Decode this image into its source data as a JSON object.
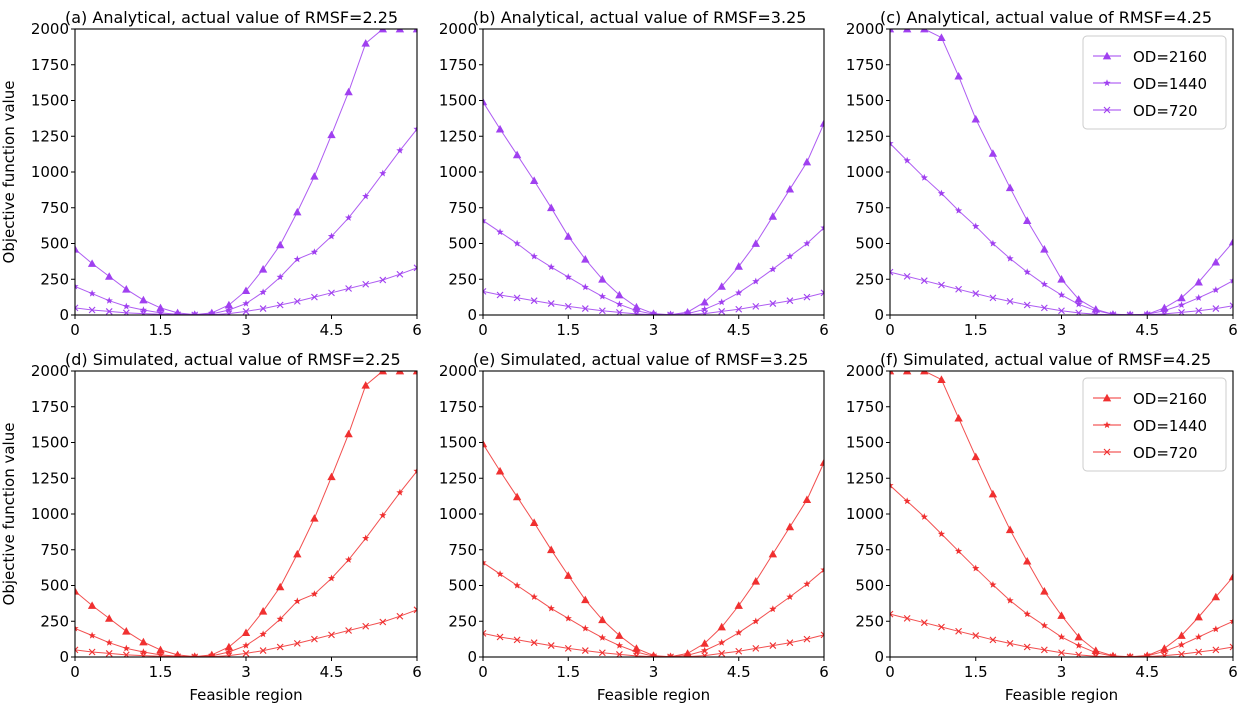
{
  "figure": {
    "shared_ylabel": "Objective function value",
    "shared_xlabel": "Feasible region",
    "series_names": [
      "OD=2160",
      "OD=1440",
      "OD=720"
    ],
    "markers": [
      "triangle",
      "star",
      "x"
    ],
    "colors": {
      "analytical": "#a040f0",
      "simulated": "#f03030"
    }
  },
  "chart_data": [
    {
      "type": "line",
      "group": "analytical",
      "title": "(a) Analytical, actual value of RMSF=2.25",
      "xlabel": "",
      "ylabel": "Objective function value",
      "xlim": [
        0,
        6
      ],
      "ylim": [
        0,
        2000
      ],
      "xticks": [
        "0",
        "1.5",
        "3",
        "4.5",
        "6"
      ],
      "yticks": [
        "0",
        "250",
        "500",
        "750",
        "1000",
        "1250",
        "1500",
        "1750",
        "2000"
      ],
      "legend": false,
      "x": [
        0,
        0.3,
        0.6,
        0.9,
        1.2,
        1.5,
        1.8,
        2.1,
        2.4,
        2.7,
        3.0,
        3.3,
        3.6,
        3.9,
        4.2,
        4.5,
        4.8,
        5.1,
        5.4,
        5.7,
        6.0
      ],
      "series": [
        {
          "name": "OD=2160",
          "marker": "triangle",
          "values": [
            460,
            360,
            270,
            180,
            105,
            50,
            15,
            3,
            15,
            70,
            170,
            320,
            490,
            720,
            970,
            1260,
            1560,
            1900,
            2000,
            2000,
            2000
          ]
        },
        {
          "name": "OD=1440",
          "marker": "star",
          "values": [
            200,
            150,
            100,
            60,
            35,
            15,
            5,
            2,
            8,
            35,
            80,
            160,
            265,
            390,
            440,
            550,
            680,
            830,
            990,
            1150,
            1300
          ]
        },
        {
          "name": "OD=720",
          "marker": "x",
          "values": [
            50,
            35,
            25,
            15,
            10,
            5,
            2,
            1,
            2,
            10,
            25,
            45,
            70,
            95,
            125,
            155,
            185,
            215,
            245,
            285,
            330
          ]
        }
      ]
    },
    {
      "type": "line",
      "group": "analytical",
      "title": "(b) Analytical, actual value of RMSF=3.25",
      "xlabel": "",
      "ylabel": "",
      "xlim": [
        0,
        6
      ],
      "ylim": [
        0,
        2000
      ],
      "xticks": [
        "0",
        "1.5",
        "3",
        "4.5",
        "6"
      ],
      "yticks": [
        "0",
        "250",
        "500",
        "750",
        "1000",
        "1250",
        "1500",
        "1750",
        "2000"
      ],
      "legend": false,
      "x": [
        0,
        0.3,
        0.6,
        0.9,
        1.2,
        1.5,
        1.8,
        2.1,
        2.4,
        2.7,
        3.0,
        3.3,
        3.6,
        3.9,
        4.2,
        4.5,
        4.8,
        5.1,
        5.4,
        5.7,
        6.0
      ],
      "series": [
        {
          "name": "OD=2160",
          "marker": "triangle",
          "values": [
            1490,
            1300,
            1120,
            940,
            750,
            550,
            390,
            250,
            140,
            55,
            10,
            2,
            20,
            90,
            200,
            340,
            500,
            690,
            880,
            1070,
            1340
          ]
        },
        {
          "name": "OD=1440",
          "marker": "star",
          "values": [
            660,
            580,
            500,
            410,
            335,
            265,
            195,
            130,
            75,
            30,
            5,
            1,
            10,
            40,
            90,
            155,
            235,
            320,
            410,
            500,
            610
          ]
        },
        {
          "name": "OD=720",
          "marker": "x",
          "values": [
            165,
            140,
            120,
            100,
            80,
            60,
            45,
            30,
            18,
            8,
            2,
            1,
            3,
            10,
            25,
            40,
            60,
            80,
            100,
            125,
            155
          ]
        }
      ]
    },
    {
      "type": "line",
      "group": "analytical",
      "title": "(c) Analytical, actual value of RMSF=4.25",
      "xlabel": "",
      "ylabel": "",
      "xlim": [
        0,
        6
      ],
      "ylim": [
        0,
        2000
      ],
      "xticks": [
        "0",
        "1.5",
        "3",
        "4.5",
        "6"
      ],
      "yticks": [
        "0",
        "250",
        "500",
        "750",
        "1000",
        "1250",
        "1500",
        "1750",
        "2000"
      ],
      "legend": true,
      "legend_loc": "upper right",
      "x": [
        0,
        0.3,
        0.6,
        0.9,
        1.2,
        1.5,
        1.8,
        2.1,
        2.4,
        2.7,
        3.0,
        3.3,
        3.6,
        3.9,
        4.2,
        4.5,
        4.8,
        5.1,
        5.4,
        5.7,
        6.0
      ],
      "series": [
        {
          "name": "OD=2160",
          "marker": "triangle",
          "values": [
            2000,
            2000,
            2000,
            1940,
            1670,
            1370,
            1130,
            890,
            660,
            460,
            250,
            110,
            40,
            5,
            2,
            5,
            50,
            120,
            230,
            370,
            510
          ]
        },
        {
          "name": "OD=1440",
          "marker": "star",
          "values": [
            1200,
            1080,
            960,
            850,
            730,
            620,
            500,
            395,
            300,
            215,
            140,
            75,
            30,
            5,
            1,
            5,
            30,
            70,
            120,
            175,
            240
          ]
        },
        {
          "name": "OD=720",
          "marker": "x",
          "values": [
            300,
            270,
            240,
            210,
            180,
            150,
            120,
            95,
            70,
            50,
            30,
            15,
            5,
            2,
            1,
            2,
            8,
            18,
            30,
            45,
            65
          ]
        }
      ]
    },
    {
      "type": "line",
      "group": "simulated",
      "title": "(d) Simulated, actual value of RMSF=2.25",
      "xlabel": "Feasible region",
      "ylabel": "Objective function value",
      "xlim": [
        0,
        6
      ],
      "ylim": [
        0,
        2000
      ],
      "xticks": [
        "0",
        "1.5",
        "3",
        "4.5",
        "6"
      ],
      "yticks": [
        "0",
        "250",
        "500",
        "750",
        "1000",
        "1250",
        "1500",
        "1750",
        "2000"
      ],
      "legend": false,
      "x": [
        0,
        0.3,
        0.6,
        0.9,
        1.2,
        1.5,
        1.8,
        2.1,
        2.4,
        2.7,
        3.0,
        3.3,
        3.6,
        3.9,
        4.2,
        4.5,
        4.8,
        5.1,
        5.4,
        5.7,
        6.0
      ],
      "series": [
        {
          "name": "OD=2160",
          "marker": "triangle",
          "values": [
            460,
            360,
            270,
            180,
            105,
            50,
            15,
            3,
            15,
            70,
            170,
            320,
            490,
            720,
            970,
            1260,
            1560,
            1900,
            2000,
            2000,
            2000
          ]
        },
        {
          "name": "OD=1440",
          "marker": "star",
          "values": [
            200,
            150,
            100,
            60,
            35,
            15,
            5,
            2,
            8,
            35,
            80,
            160,
            265,
            390,
            440,
            550,
            680,
            830,
            990,
            1150,
            1300
          ]
        },
        {
          "name": "OD=720",
          "marker": "x",
          "values": [
            50,
            35,
            25,
            15,
            10,
            5,
            2,
            1,
            2,
            10,
            25,
            45,
            70,
            95,
            125,
            155,
            185,
            215,
            245,
            285,
            330
          ]
        }
      ]
    },
    {
      "type": "line",
      "group": "simulated",
      "title": "(e) Simulated, actual value of RMSF=3.25",
      "xlabel": "Feasible region",
      "ylabel": "",
      "xlim": [
        0,
        6
      ],
      "ylim": [
        0,
        2000
      ],
      "xticks": [
        "0",
        "1.5",
        "3",
        "4.5",
        "6"
      ],
      "yticks": [
        "0",
        "250",
        "500",
        "750",
        "1000",
        "1250",
        "1500",
        "1750",
        "2000"
      ],
      "legend": false,
      "x": [
        0,
        0.3,
        0.6,
        0.9,
        1.2,
        1.5,
        1.8,
        2.1,
        2.4,
        2.7,
        3.0,
        3.3,
        3.6,
        3.9,
        4.2,
        4.5,
        4.8,
        5.1,
        5.4,
        5.7,
        6.0
      ],
      "series": [
        {
          "name": "OD=2160",
          "marker": "triangle",
          "values": [
            1490,
            1300,
            1120,
            940,
            750,
            570,
            400,
            260,
            150,
            60,
            10,
            2,
            25,
            95,
            210,
            360,
            530,
            720,
            910,
            1100,
            1360
          ]
        },
        {
          "name": "OD=1440",
          "marker": "star",
          "values": [
            660,
            580,
            500,
            420,
            340,
            270,
            200,
            135,
            80,
            35,
            5,
            1,
            12,
            45,
            100,
            170,
            250,
            335,
            420,
            510,
            610
          ]
        },
        {
          "name": "OD=720",
          "marker": "x",
          "values": [
            165,
            140,
            120,
            100,
            80,
            60,
            45,
            30,
            18,
            8,
            2,
            1,
            3,
            10,
            25,
            40,
            60,
            80,
            100,
            125,
            155
          ]
        }
      ]
    },
    {
      "type": "line",
      "group": "simulated",
      "title": "(f) Simulated, actual value of RMSF=4.25",
      "xlabel": "Feasible region",
      "ylabel": "",
      "xlim": [
        0,
        6
      ],
      "ylim": [
        0,
        2000
      ],
      "xticks": [
        "0",
        "1.5",
        "3",
        "4.5",
        "6"
      ],
      "yticks": [
        "0",
        "250",
        "500",
        "750",
        "1000",
        "1250",
        "1500",
        "1750",
        "2000"
      ],
      "legend": true,
      "legend_loc": "upper right",
      "x": [
        0,
        0.3,
        0.6,
        0.9,
        1.2,
        1.5,
        1.8,
        2.1,
        2.4,
        2.7,
        3.0,
        3.3,
        3.6,
        3.9,
        4.2,
        4.5,
        4.8,
        5.1,
        5.4,
        5.7,
        6.0
      ],
      "series": [
        {
          "name": "OD=2160",
          "marker": "triangle",
          "values": [
            2000,
            2000,
            2000,
            1940,
            1670,
            1400,
            1140,
            890,
            670,
            460,
            290,
            140,
            45,
            8,
            2,
            10,
            60,
            150,
            280,
            420,
            560
          ]
        },
        {
          "name": "OD=1440",
          "marker": "star",
          "values": [
            1200,
            1090,
            980,
            860,
            740,
            620,
            505,
            395,
            300,
            220,
            140,
            80,
            30,
            5,
            1,
            8,
            40,
            85,
            140,
            195,
            250
          ]
        },
        {
          "name": "OD=720",
          "marker": "x",
          "values": [
            300,
            270,
            240,
            210,
            180,
            150,
            120,
            95,
            70,
            50,
            30,
            15,
            5,
            2,
            1,
            3,
            10,
            20,
            35,
            50,
            70
          ]
        }
      ]
    }
  ]
}
